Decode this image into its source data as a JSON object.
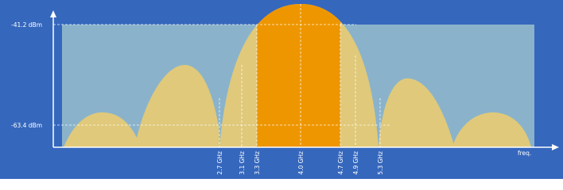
{
  "levels": [
    "-41.2 dBm",
    "-63.4 dBm"
  ],
  "markers": [
    "2.7 GHz",
    "3.1 GHz",
    "3.3 GHz",
    "4.0 GHz",
    "4.7 GHz",
    "4.9 GHz",
    "5.3 GHz"
  ],
  "axis_label": "freq."
}
